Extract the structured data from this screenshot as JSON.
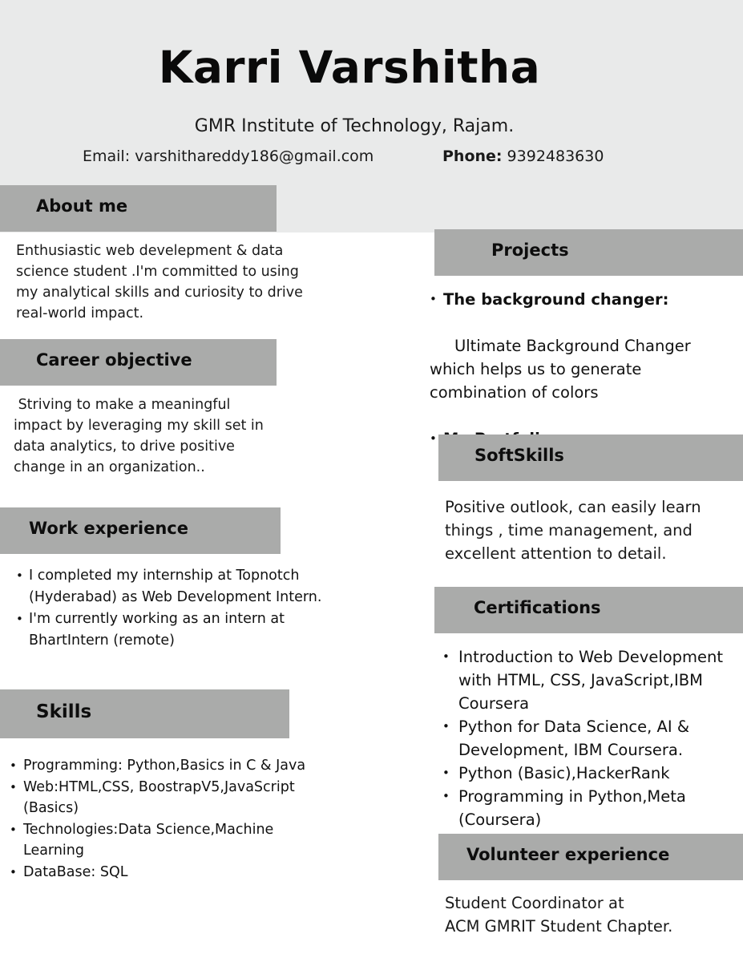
{
  "header": {
    "name": "Karri Varshitha",
    "institute": "GMR Institute of Technology, Rajam.",
    "email_text": "Email: varshithareddy186@gmail.com",
    "phone_label": "Phone:",
    "phone_value": " 9392483630"
  },
  "about": {
    "title": "About me",
    "text": "Enthusiastic web develepment & data science student .I'm committed to using my analytical skills and curiosity to drive real-world impact."
  },
  "career": {
    "title": "Career objective",
    "text": " Striving to make a meaningful impact by leveraging my skill set in data analytics, to drive positive change in an organization.."
  },
  "work": {
    "title": "Work experience",
    "items": [
      "I completed my internship at Topnotch (Hyderabad) as Web Development Intern.",
      "I'm currently working as an intern at BhartIntern (remote)"
    ]
  },
  "skills": {
    "title": "Skills",
    "items": [
      "Programming: Python,Basics in C & Java",
      "Web:HTML,CSS, BoostrapV5,JavaScript (Basics)",
      "Technologies:Data Science,Machine Learning",
      "DataBase: SQL"
    ]
  },
  "projects": {
    "title": "Projects",
    "p1_name": "The background changer:",
    "p1_desc": " Ultimate Background Changer which helps us to generate combination of colors",
    "p2_name": "My Portfolio"
  },
  "softskills": {
    "title": "SoftSkills",
    "text": "Positive outlook, can easily learn things , time management, and excellent attention to detail."
  },
  "certifications": {
    "title": "Certifications",
    "items": [
      "Introduction to Web Development with HTML, CSS, JavaScript,IBM Coursera",
      "Python for Data Science, AI & Development, IBM Coursera.",
      "Python (Basic),HackerRank",
      "Programming in Python,Meta (Coursera)"
    ]
  },
  "volunteer": {
    "title": "Volunteer experience",
    "line1": "Student Coordinator at",
    "line2": "ACM GMRIT Student Chapter."
  },
  "colors": {
    "header_bg": "#e9eaea",
    "section_bar": "#aaabaa",
    "text": "#111111"
  }
}
